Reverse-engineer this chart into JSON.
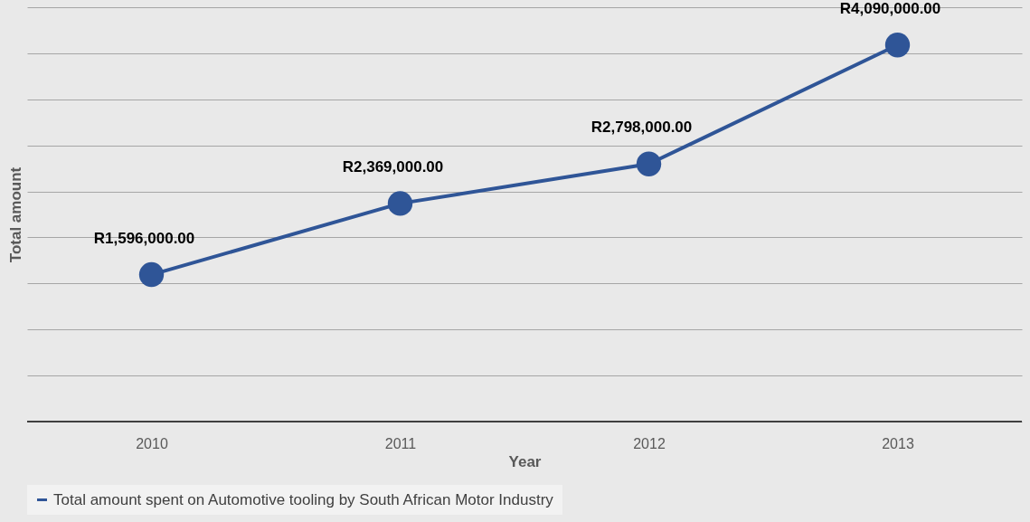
{
  "chart_data": {
    "type": "line",
    "xlabel": "Year",
    "ylabel": "Total amount",
    "categories": [
      "2010",
      "2011",
      "2012",
      "2013"
    ],
    "series": [
      {
        "name": "Total amount spent on Automotive tooling by South African Motor Industry",
        "color": "#2f5597",
        "values": [
          1596000,
          2369000,
          2798000,
          4090000
        ],
        "value_labels": [
          "R1,596,000.00",
          "R2,369,000.00",
          "R2,798,000.00",
          "R4,090,000.00"
        ]
      }
    ],
    "ylim": [
      0,
      4500000
    ],
    "yticks": [
      {
        "value": 0,
        "label": null
      },
      {
        "value": 500000,
        "label": null
      },
      {
        "value": 1000000,
        "label": null
      },
      {
        "value": 1500000,
        "label": null
      },
      {
        "value": 2000000,
        "label": null
      },
      {
        "value": 2500000,
        "label": null
      },
      {
        "value": 3000000,
        "label": null
      },
      {
        "value": 3500000,
        "label": null
      },
      {
        "value": 4000000,
        "label": null
      },
      {
        "value": 4500000,
        "label": null
      }
    ],
    "tick_labels": "x",
    "grid": "y",
    "legend": "bottom",
    "marker": "circle",
    "line_style": "solid"
  }
}
